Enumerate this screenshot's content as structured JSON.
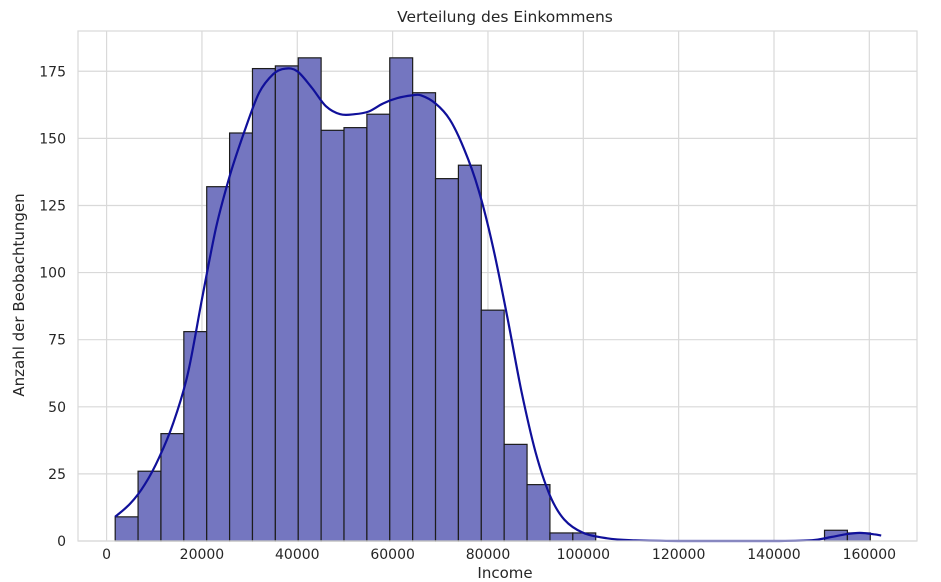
{
  "chart_data": {
    "type": "bar",
    "title": "Verteilung des Einkommens",
    "xlabel": "Income",
    "ylabel": "Anzahl der Beobachtungen",
    "xlim": [
      -6000,
      170000
    ],
    "ylim": [
      0,
      190
    ],
    "xticks": [
      0,
      20000,
      40000,
      60000,
      80000,
      100000,
      120000,
      140000,
      160000
    ],
    "yticks": [
      0,
      25,
      50,
      75,
      100,
      125,
      150,
      175
    ],
    "grid": true,
    "colors": {
      "bar_fill": "#7476c0",
      "bar_edge": "#1c1c1c",
      "kde_line": "#10109a",
      "grid": "#d9d9d9"
    },
    "bin_start": 1800,
    "bin_width": 4800,
    "bin_counts": [
      9,
      26,
      40,
      78,
      132,
      152,
      176,
      177,
      180,
      153,
      154,
      159,
      180,
      167,
      135,
      140,
      86,
      36,
      21,
      3,
      3,
      0,
      0,
      0,
      0,
      0,
      0,
      0,
      0,
      0,
      0,
      4,
      3
    ],
    "kde": {
      "x": [
        1800,
        5000,
        8000,
        11000,
        14000,
        17000,
        20000,
        23000,
        26000,
        29000,
        32000,
        35000,
        37500,
        40000,
        43000,
        46000,
        49000,
        52000,
        55000,
        58000,
        61000,
        64000,
        66000,
        69000,
        72000,
        75000,
        78000,
        81000,
        84000,
        87000,
        90000,
        93000,
        96000,
        100000,
        105000,
        110000,
        120000,
        130000,
        140000,
        148000,
        152000,
        155000,
        158000,
        161000,
        162500
      ],
      "y": [
        9,
        14,
        21,
        31,
        44,
        62,
        90,
        117,
        137,
        153,
        167,
        174,
        176,
        175,
        169,
        162,
        159,
        159,
        160,
        163,
        165,
        166,
        166,
        163,
        157,
        146,
        131,
        110,
        84,
        56,
        33,
        17,
        8,
        3,
        1,
        0.3,
        0,
        0,
        0,
        0.3,
        1.5,
        2.5,
        3,
        2.5,
        2
      ]
    }
  }
}
